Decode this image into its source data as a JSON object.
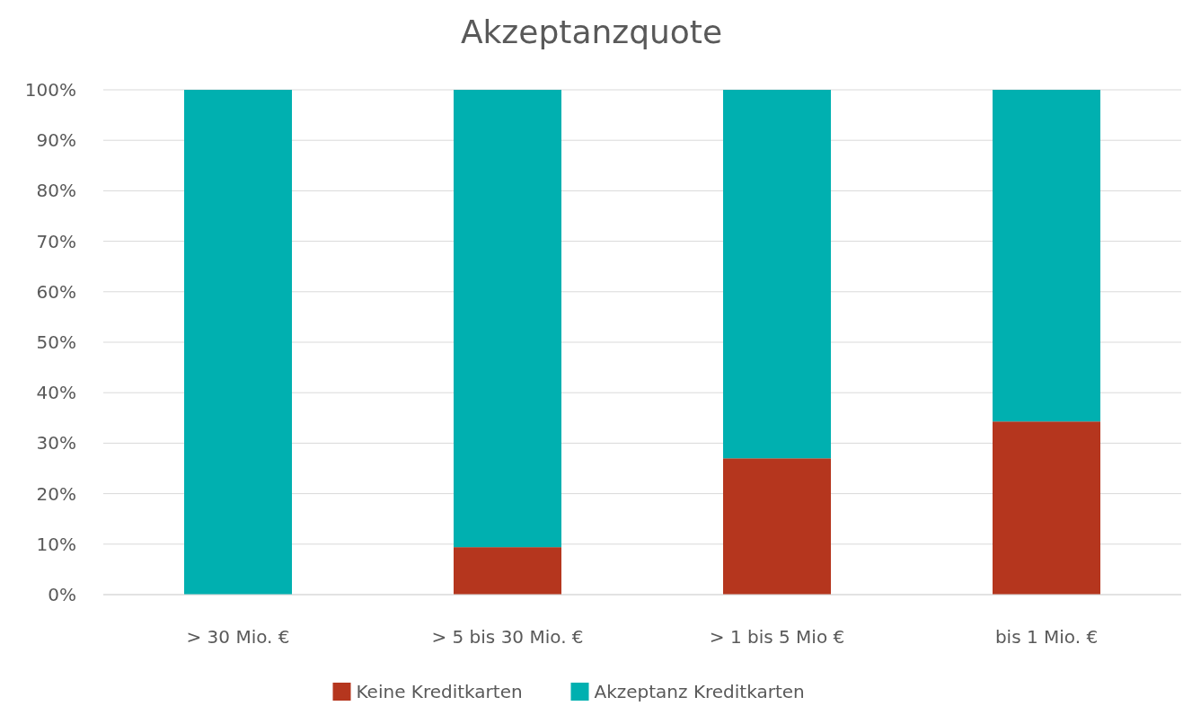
{
  "chart_data": {
    "type": "bar",
    "title": "Akzeptanzquote",
    "stacked": true,
    "categories": [
      "> 30 Mio. €",
      "> 5 bis 30 Mio. €",
      "> 1 bis 5 Mio €",
      "bis 1 Mio. €"
    ],
    "series": [
      {
        "name": "Keine Kreditkarten",
        "color": "#b5361e",
        "values": [
          0,
          9.4,
          27,
          34.3
        ]
      },
      {
        "name": "Akzeptanz Kreditkarten",
        "color": "#00b0b0",
        "values": [
          100,
          90.6,
          73,
          65.7
        ]
      }
    ],
    "ylim": [
      0,
      100
    ],
    "yticks": [
      {
        "value": 0,
        "label": "0%"
      },
      {
        "value": 10,
        "label": "10%"
      },
      {
        "value": 20,
        "label": "20%"
      },
      {
        "value": 30,
        "label": "30%"
      },
      {
        "value": 40,
        "label": "40%"
      },
      {
        "value": 50,
        "label": "50%"
      },
      {
        "value": 60,
        "label": "60%"
      },
      {
        "value": 70,
        "label": "70%"
      },
      {
        "value": 80,
        "label": "80%"
      },
      {
        "value": 90,
        "label": "90%"
      },
      {
        "value": 100,
        "label": "100%"
      }
    ],
    "grid": "y",
    "legend": "bottom"
  }
}
